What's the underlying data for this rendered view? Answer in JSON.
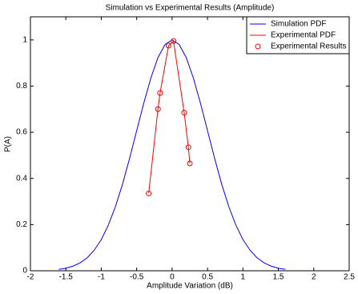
{
  "chart_data": {
    "type": "line",
    "title": "Simulation vs Experimental Results (Amplitude)",
    "x_label": "Amplitude Variation (dB)",
    "y_label": "P(A)",
    "xlim": [
      -2,
      2.5
    ],
    "xticks": [
      -2,
      -1.5,
      -1,
      -0.5,
      0,
      0.5,
      1,
      1.5,
      2,
      2.5
    ],
    "ylim": [
      0,
      1.1
    ],
    "yticks": [
      0,
      0.2,
      0.4,
      0.6,
      0.8,
      1
    ],
    "grid": false,
    "legend": "upper right",
    "series": [
      {
        "name": "Simulation PDF",
        "color": "#0000ff",
        "style": "line",
        "x": [
          -1.6,
          -1.5,
          -1.4,
          -1.3,
          -1.2,
          -1.1,
          -1,
          -0.9,
          -0.8,
          -0.7,
          -0.6,
          -0.5,
          -0.4,
          -0.3,
          -0.2,
          -0.1,
          0,
          0.1,
          0.2,
          0.3,
          0.4,
          0.5,
          0.6,
          0.7,
          0.8,
          0.9,
          1,
          1.1,
          1.2,
          1.3,
          1.4,
          1.5,
          1.6
        ],
        "values": [
          0.006,
          0.011,
          0.02,
          0.034,
          0.056,
          0.089,
          0.135,
          0.198,
          0.278,
          0.375,
          0.487,
          0.607,
          0.726,
          0.835,
          0.923,
          0.98,
          1,
          0.98,
          0.923,
          0.835,
          0.726,
          0.607,
          0.487,
          0.375,
          0.278,
          0.198,
          0.135,
          0.089,
          0.056,
          0.034,
          0.02,
          0.011,
          0.006
        ]
      },
      {
        "name": "Experimental PDF",
        "color": "#ff0000",
        "style": "line",
        "x": [
          -0.33,
          -0.2,
          -0.17,
          -0.05,
          0.02,
          0.17,
          0.23,
          0.25
        ],
        "values": [
          0.335,
          0.7,
          0.77,
          0.975,
          0.995,
          0.685,
          0.535,
          0.465
        ]
      },
      {
        "name": "Experimental Results",
        "color": "#ff0000",
        "style": "markers",
        "x": [
          -0.33,
          -0.2,
          -0.17,
          -0.05,
          0.02,
          0.17,
          0.23,
          0.25
        ],
        "values": [
          0.335,
          0.7,
          0.77,
          0.975,
          0.995,
          0.685,
          0.535,
          0.465
        ]
      }
    ]
  }
}
